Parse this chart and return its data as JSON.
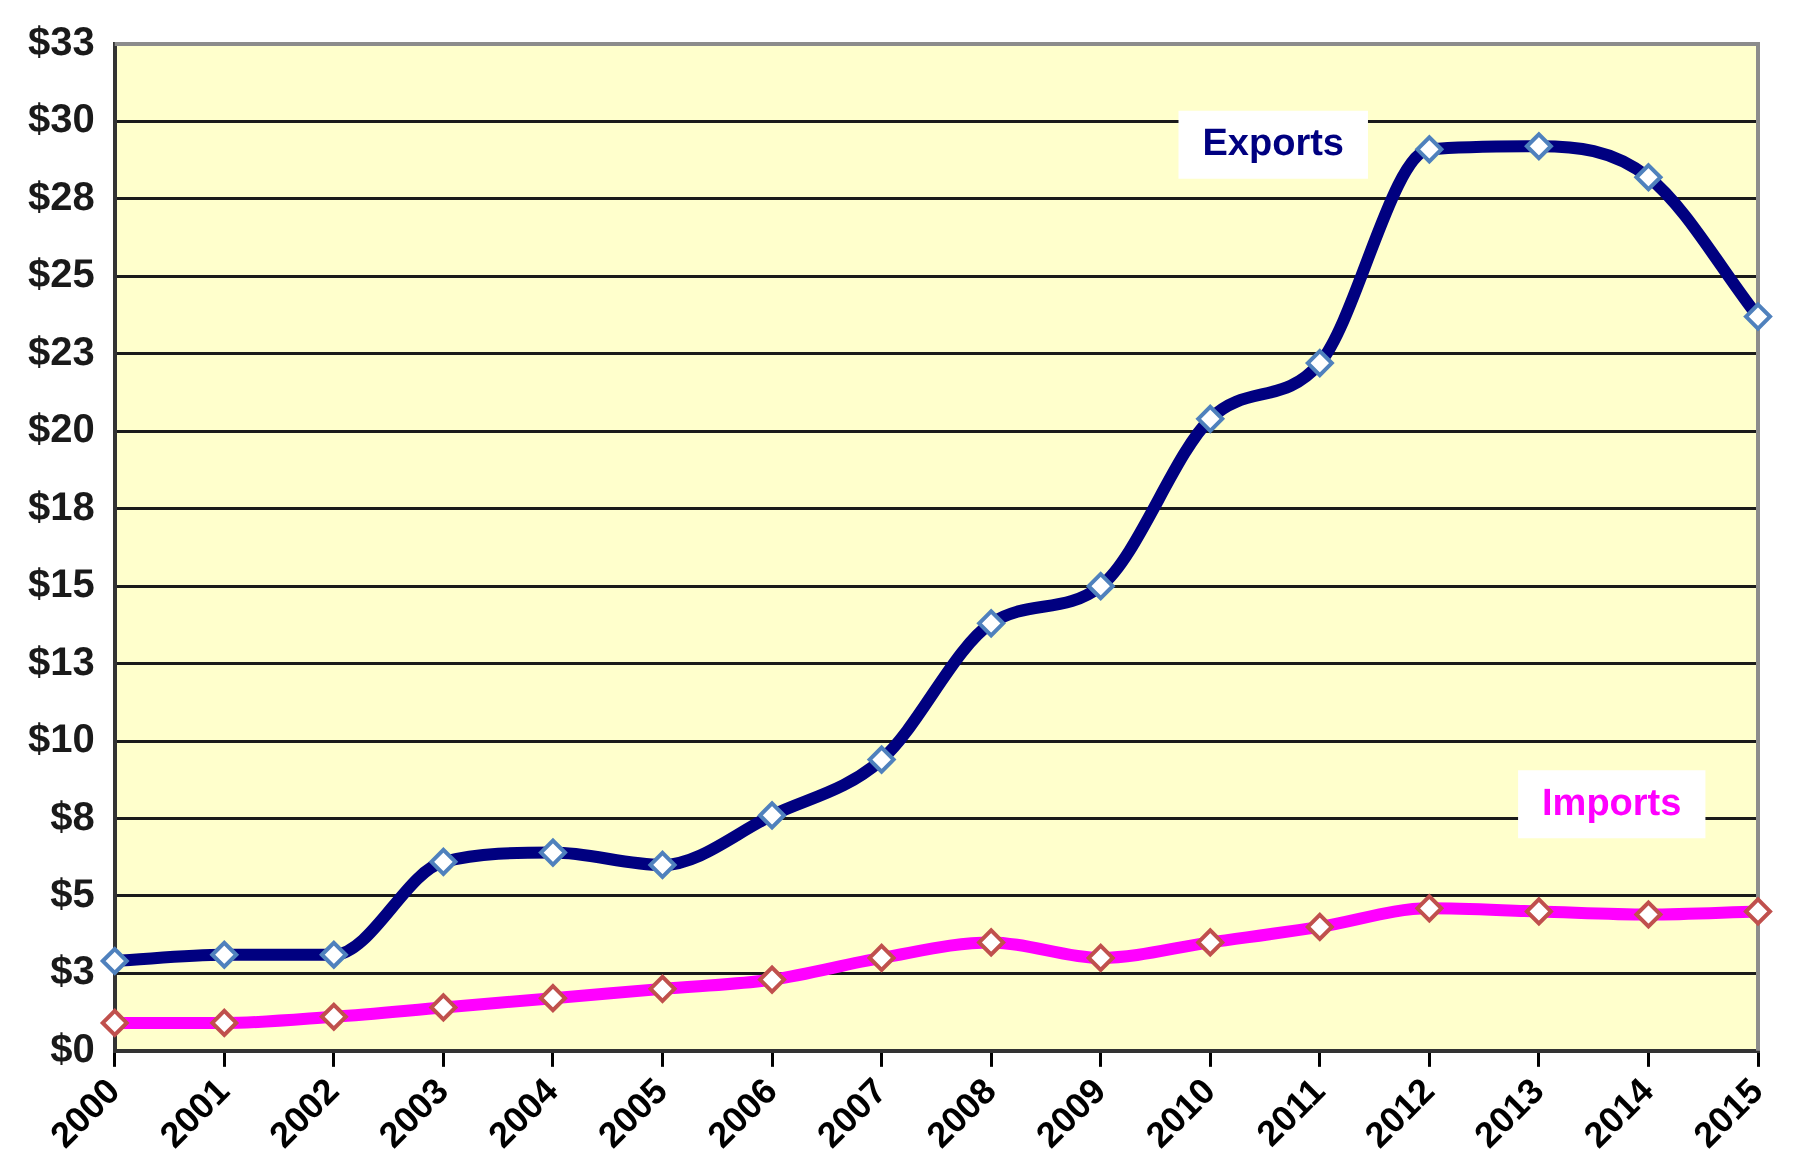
{
  "chart_data": {
    "type": "line",
    "categories": [
      "2000",
      "2001",
      "2002",
      "2003",
      "2004",
      "2005",
      "2006",
      "2007",
      "2008",
      "2009",
      "2010",
      "2011",
      "2012",
      "2013",
      "2014",
      "2015"
    ],
    "series": [
      {
        "name": "Exports",
        "color": "#000080",
        "values": [
          2.9,
          3.1,
          3.1,
          6.1,
          6.4,
          6.0,
          7.6,
          9.4,
          13.8,
          15.0,
          20.4,
          22.2,
          29.1,
          29.2,
          28.2,
          23.7
        ]
      },
      {
        "name": "Imports",
        "color": "#ff00ff",
        "values": [
          0.9,
          0.9,
          1.1,
          1.4,
          1.7,
          2.0,
          2.3,
          3.0,
          3.5,
          3.0,
          3.5,
          4.0,
          4.6,
          4.5,
          4.4,
          4.5
        ]
      }
    ],
    "ylim": [
      0,
      32.5
    ],
    "yticks": [
      {
        "value": 0,
        "label": "$0"
      },
      {
        "value": 2.5,
        "label": "$3"
      },
      {
        "value": 5,
        "label": "$5"
      },
      {
        "value": 7.5,
        "label": "$8"
      },
      {
        "value": 10,
        "label": "$10"
      },
      {
        "value": 12.5,
        "label": "$13"
      },
      {
        "value": 15,
        "label": "$15"
      },
      {
        "value": 17.5,
        "label": "$18"
      },
      {
        "value": 20,
        "label": "$20"
      },
      {
        "value": 22.5,
        "label": "$23"
      },
      {
        "value": 25,
        "label": "$25"
      },
      {
        "value": 27.5,
        "label": "$28"
      },
      {
        "value": 30,
        "label": "$30"
      },
      {
        "value": 32.5,
        "label": "$33"
      }
    ],
    "grid": "y",
    "marker": "diamond"
  }
}
